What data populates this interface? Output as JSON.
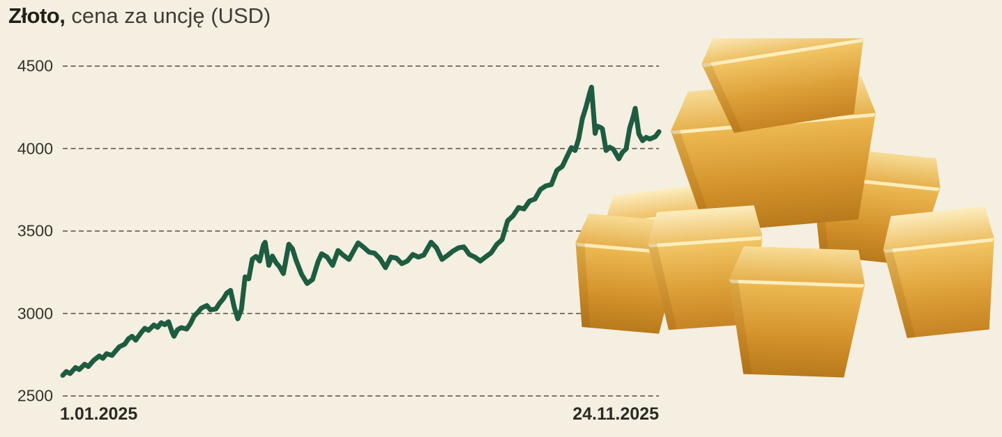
{
  "header": {
    "title_bold": "Złoto,",
    "title_rest": "cena za uncję (USD)"
  },
  "colors": {
    "background": "#f4efe0",
    "price_line": "#1e5c41",
    "gridline": "#514c3e",
    "title_text": "#21201a",
    "axis_text": "#33322b",
    "gold_light": "#fcedbe",
    "gold_mid": "#e2a94f",
    "gold_dark": "#b87a1c"
  },
  "chart_data": {
    "type": "line",
    "title": "Złoto, cena za uncję (USD)",
    "xlabel": "",
    "ylabel": "cena za uncję (USD)",
    "ylim": [
      2500,
      4500
    ],
    "y_ticks": [
      4500,
      4000,
      3500,
      3000,
      2500
    ],
    "y_tick_labels": [
      "4500",
      "4000",
      "3500",
      "3000",
      "2500"
    ],
    "x_axis_labels": [
      "1.01.2025",
      "24.11.2025"
    ],
    "x_range_days": [
      0,
      327
    ],
    "grid": "horizontal dashed",
    "legend": "none",
    "series": [
      {
        "name": "Złoto – cena za uncję (USD)",
        "points": [
          [
            0,
            2625
          ],
          [
            2,
            2648
          ],
          [
            4,
            2636
          ],
          [
            7,
            2672
          ],
          [
            9,
            2660
          ],
          [
            12,
            2692
          ],
          [
            14,
            2678
          ],
          [
            17,
            2716
          ],
          [
            20,
            2742
          ],
          [
            22,
            2728
          ],
          [
            24,
            2756
          ],
          [
            27,
            2746
          ],
          [
            29,
            2772
          ],
          [
            31,
            2798
          ],
          [
            34,
            2814
          ],
          [
            36,
            2846
          ],
          [
            38,
            2862
          ],
          [
            40,
            2838
          ],
          [
            43,
            2884
          ],
          [
            45,
            2910
          ],
          [
            47,
            2898
          ],
          [
            50,
            2930
          ],
          [
            52,
            2916
          ],
          [
            54,
            2944
          ],
          [
            56,
            2932
          ],
          [
            58,
            2950
          ],
          [
            60,
            2886
          ],
          [
            61,
            2862
          ],
          [
            63,
            2902
          ],
          [
            65,
            2914
          ],
          [
            68,
            2906
          ],
          [
            70,
            2938
          ],
          [
            72,
            2984
          ],
          [
            74,
            3006
          ],
          [
            76,
            3032
          ],
          [
            79,
            3048
          ],
          [
            81,
            3022
          ],
          [
            84,
            3028
          ],
          [
            86,
            3062
          ],
          [
            88,
            3088
          ],
          [
            90,
            3124
          ],
          [
            92,
            3140
          ],
          [
            94,
            3040
          ],
          [
            96,
            2968
          ],
          [
            98,
            3025
          ],
          [
            100,
            3222
          ],
          [
            102,
            3210
          ],
          [
            104,
            3330
          ],
          [
            106,
            3346
          ],
          [
            108,
            3318
          ],
          [
            110,
            3414
          ],
          [
            111,
            3432
          ],
          [
            113,
            3292
          ],
          [
            115,
            3348
          ],
          [
            117,
            3308
          ],
          [
            119,
            3282
          ],
          [
            121,
            3242
          ],
          [
            124,
            3420
          ],
          [
            126,
            3392
          ],
          [
            128,
            3322
          ],
          [
            131,
            3238
          ],
          [
            134,
            3182
          ],
          [
            137,
            3206
          ],
          [
            140,
            3314
          ],
          [
            142,
            3362
          ],
          [
            145,
            3342
          ],
          [
            148,
            3292
          ],
          [
            151,
            3382
          ],
          [
            154,
            3352
          ],
          [
            157,
            3328
          ],
          [
            160,
            3388
          ],
          [
            162,
            3428
          ],
          [
            165,
            3402
          ],
          [
            168,
            3372
          ],
          [
            171,
            3366
          ],
          [
            174,
            3332
          ],
          [
            177,
            3278
          ],
          [
            180,
            3342
          ],
          [
            183,
            3336
          ],
          [
            186,
            3302
          ],
          [
            189,
            3318
          ],
          [
            192,
            3358
          ],
          [
            195,
            3342
          ],
          [
            198,
            3354
          ],
          [
            202,
            3432
          ],
          [
            205,
            3398
          ],
          [
            208,
            3328
          ],
          [
            211,
            3352
          ],
          [
            214,
            3378
          ],
          [
            217,
            3398
          ],
          [
            220,
            3404
          ],
          [
            223,
            3358
          ],
          [
            226,
            3342
          ],
          [
            229,
            3318
          ],
          [
            232,
            3344
          ],
          [
            235,
            3368
          ],
          [
            238,
            3418
          ],
          [
            241,
            3448
          ],
          [
            244,
            3562
          ],
          [
            247,
            3592
          ],
          [
            250,
            3642
          ],
          [
            253,
            3634
          ],
          [
            256,
            3682
          ],
          [
            259,
            3694
          ],
          [
            262,
            3752
          ],
          [
            265,
            3774
          ],
          [
            268,
            3782
          ],
          [
            271,
            3868
          ],
          [
            274,
            3892
          ],
          [
            277,
            3962
          ],
          [
            279,
            4006
          ],
          [
            281,
            3988
          ],
          [
            283,
            4062
          ],
          [
            285,
            4182
          ],
          [
            287,
            4252
          ],
          [
            289,
            4336
          ],
          [
            290,
            4372
          ],
          [
            292,
            4092
          ],
          [
            293,
            4136
          ],
          [
            295,
            4128
          ],
          [
            296,
            4120
          ],
          [
            298,
            3988
          ],
          [
            300,
            4008
          ],
          [
            302,
            3996
          ],
          [
            305,
            3938
          ],
          [
            307,
            3978
          ],
          [
            309,
            3998
          ],
          [
            311,
            4126
          ],
          [
            313,
            4198
          ],
          [
            314,
            4244
          ],
          [
            316,
            4088
          ],
          [
            318,
            4048
          ],
          [
            320,
            4068
          ],
          [
            322,
            4058
          ],
          [
            325,
            4072
          ],
          [
            327,
            4102
          ]
        ]
      }
    ]
  }
}
